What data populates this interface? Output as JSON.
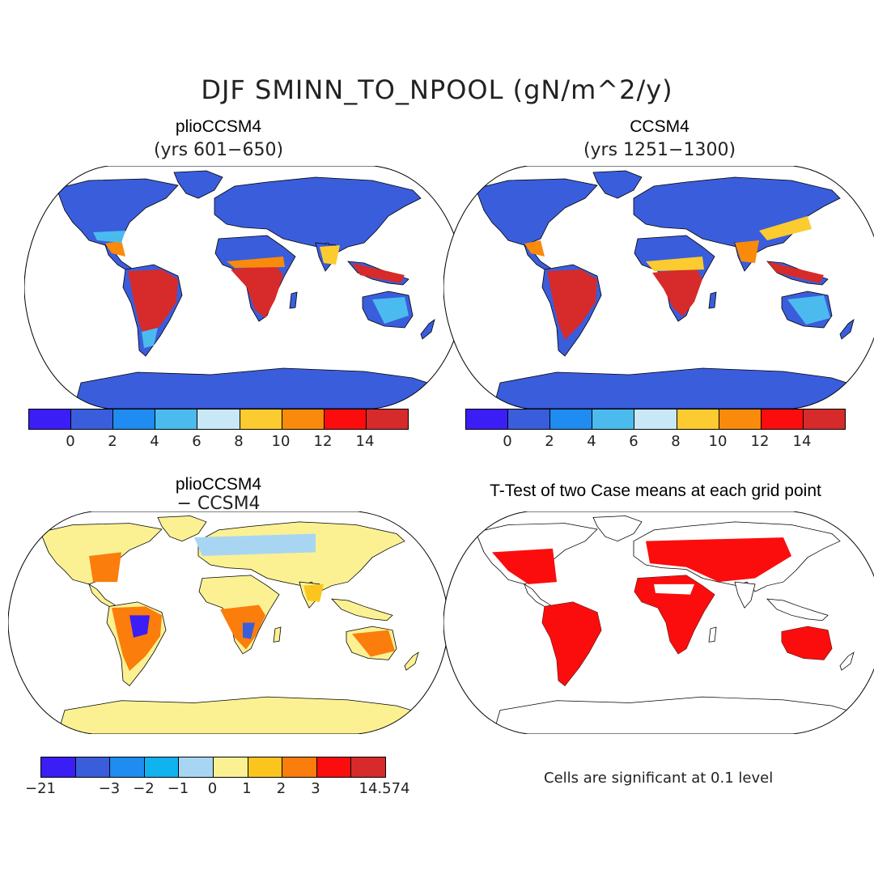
{
  "figure": {
    "title": "DJF SMINN_TO_NPOOL (gN/m^2/y)"
  },
  "panels": [
    {
      "title": "plioCCSM4",
      "subtitle": "(yrs 601−650)"
    },
    {
      "title": "CCSM4",
      "subtitle": "(yrs 1251−1300)"
    },
    {
      "title": "plioCCSM4",
      "subtitle": "− CCSM4"
    },
    {
      "title": "T-Test of two Case means at each grid point",
      "subtitle": ""
    }
  ],
  "colorbar_main": {
    "colors": [
      "#3a1ef5",
      "#3a5ddc",
      "#1e8cf0",
      "#4bbbef",
      "#c8e8f5",
      "#fbcb30",
      "#f98a0b",
      "#fb0d0d",
      "#d72a2a"
    ],
    "labels": [
      "0",
      "2",
      "4",
      "6",
      "8",
      "10",
      "12",
      "14"
    ]
  },
  "colorbar_diff": {
    "colors": [
      "#3a1ef5",
      "#3a5ddc",
      "#1e8cf0",
      "#10b2ef",
      "#a8d6f2",
      "#fbf193",
      "#fbc51e",
      "#fb7d0b",
      "#fb0d0d",
      "#d72a2a"
    ],
    "labels": [
      "−21",
      "−3",
      "−2",
      "−1",
      "0",
      "1",
      "2",
      "3",
      "14.574"
    ]
  },
  "ttest_note": "Cells are significant at 0.1 level",
  "map_colors": {
    "ocean": "#ffffff",
    "land_low": "#3a5ddc",
    "antarctica_main": "#3a5ddc",
    "antarctica_diff": "#fbf193",
    "significant": "#fb0d0d"
  }
}
